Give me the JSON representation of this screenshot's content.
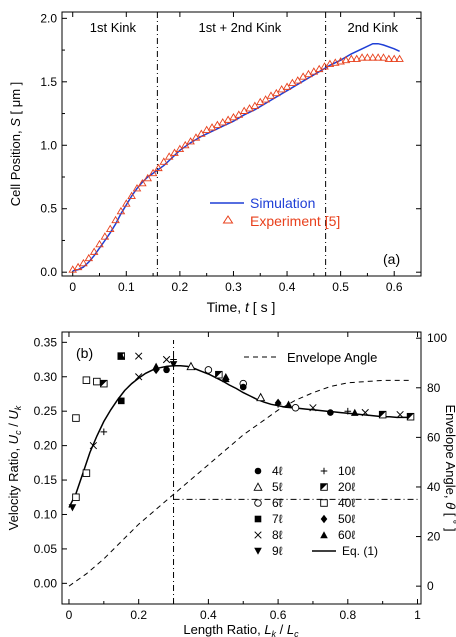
{
  "chart_data": [
    {
      "type": "line",
      "panel_label": "(a)",
      "xlabel": {
        "pre": "Time, ",
        "var": "t",
        "post": " [ s ]"
      },
      "ylabel": {
        "pre": "Cell Position, ",
        "var": "S",
        "post": " [ μm ]"
      },
      "xlim": [
        -0.02,
        0.65
      ],
      "ylim": [
        -0.03,
        2.05
      ],
      "xticks": [
        0,
        0.1,
        0.2,
        0.3,
        0.4,
        0.5,
        0.6
      ],
      "xtick_labels": [
        "0",
        "0.1",
        "0.2",
        "0.3",
        "0.4",
        "0.5",
        "0.6"
      ],
      "yticks": [
        0,
        0.5,
        1.0,
        1.5,
        2.0
      ],
      "ytick_labels": [
        "0.0",
        "0.5",
        "1.0",
        "1.5",
        "2.0"
      ],
      "vlines": [
        0.158,
        0.472
      ],
      "region_labels": [
        {
          "text": "1st Kink",
          "x": 0.075
        },
        {
          "text": "1st + 2nd Kink",
          "x": 0.312
        },
        {
          "text": "2nd Kink",
          "x": 0.56
        }
      ],
      "legend_position": "center-right",
      "series": [
        {
          "name": "Simulation",
          "style": "line",
          "color": "#1f3fd6",
          "x": [
            0,
            0.01,
            0.02,
            0.03,
            0.04,
            0.05,
            0.06,
            0.07,
            0.08,
            0.09,
            0.1,
            0.11,
            0.12,
            0.13,
            0.14,
            0.15,
            0.16,
            0.17,
            0.18,
            0.19,
            0.2,
            0.22,
            0.24,
            0.26,
            0.28,
            0.3,
            0.32,
            0.34,
            0.36,
            0.38,
            0.4,
            0.42,
            0.44,
            0.46,
            0.48,
            0.5,
            0.52,
            0.54,
            0.56,
            0.57,
            0.58,
            0.6,
            0.61
          ],
          "y": [
            0.01,
            0.02,
            0.04,
            0.08,
            0.13,
            0.19,
            0.25,
            0.31,
            0.38,
            0.46,
            0.53,
            0.6,
            0.66,
            0.71,
            0.75,
            0.78,
            0.81,
            0.84,
            0.88,
            0.92,
            0.96,
            1.02,
            1.07,
            1.11,
            1.15,
            1.19,
            1.24,
            1.28,
            1.33,
            1.38,
            1.43,
            1.48,
            1.53,
            1.58,
            1.63,
            1.67,
            1.72,
            1.76,
            1.8,
            1.8,
            1.79,
            1.76,
            1.74
          ]
        },
        {
          "name": "Experiment [5]",
          "style": "marker",
          "color": "#e8401c",
          "x": [
            0,
            0.01,
            0.02,
            0.03,
            0.04,
            0.05,
            0.06,
            0.07,
            0.08,
            0.09,
            0.1,
            0.11,
            0.12,
            0.13,
            0.14,
            0.15,
            0.16,
            0.17,
            0.18,
            0.19,
            0.2,
            0.21,
            0.22,
            0.23,
            0.24,
            0.25,
            0.26,
            0.27,
            0.28,
            0.29,
            0.3,
            0.31,
            0.32,
            0.33,
            0.34,
            0.35,
            0.36,
            0.37,
            0.38,
            0.39,
            0.4,
            0.41,
            0.42,
            0.43,
            0.44,
            0.45,
            0.46,
            0.47,
            0.48,
            0.49,
            0.5,
            0.51,
            0.52,
            0.53,
            0.54,
            0.55,
            0.56,
            0.57,
            0.58,
            0.59,
            0.6,
            0.61
          ],
          "y": [
            0.02,
            0.04,
            0.07,
            0.11,
            0.16,
            0.22,
            0.28,
            0.34,
            0.41,
            0.48,
            0.54,
            0.6,
            0.66,
            0.7,
            0.74,
            0.78,
            0.82,
            0.87,
            0.91,
            0.94,
            0.97,
            1.0,
            1.03,
            1.06,
            1.09,
            1.12,
            1.14,
            1.16,
            1.18,
            1.2,
            1.22,
            1.24,
            1.27,
            1.29,
            1.31,
            1.34,
            1.36,
            1.39,
            1.41,
            1.44,
            1.46,
            1.49,
            1.51,
            1.54,
            1.56,
            1.58,
            1.6,
            1.62,
            1.64,
            1.65,
            1.66,
            1.67,
            1.68,
            1.68,
            1.69,
            1.69,
            1.69,
            1.69,
            1.69,
            1.68,
            1.68,
            1.68
          ]
        }
      ]
    },
    {
      "type": "scatter",
      "panel_label": "(b)",
      "xlabel": {
        "pre": "Length Ratio, ",
        "var": "L",
        "sub": "k",
        "mid": " / ",
        "var2": "L",
        "sub2": "c"
      },
      "ylabel_left": {
        "pre": "Velocity Ratio, ",
        "var": "U",
        "sub": "c",
        "mid": " / ",
        "var2": "U",
        "sub2": "k"
      },
      "ylabel_right": {
        "pre": "Envelope Angle, ",
        "var": "θ",
        "post": " [ ˚ ]"
      },
      "xlim": [
        -0.02,
        1.01
      ],
      "ylim": [
        -0.03,
        0.365
      ],
      "y2lim": [
        -7.2,
        102.5
      ],
      "xticks": [
        0,
        0.2,
        0.4,
        0.6,
        0.8,
        1
      ],
      "xtick_labels": [
        "0",
        "0.2",
        "0.4",
        "0.6",
        "0.8",
        "1"
      ],
      "yticks": [
        0,
        0.05,
        0.1,
        0.15,
        0.2,
        0.25,
        0.3,
        0.35
      ],
      "ytick_labels": [
        "0.00",
        "0.05",
        "0.10",
        "0.15",
        "0.20",
        "0.25",
        "0.30",
        "0.35"
      ],
      "y2ticks": [
        0,
        20,
        40,
        60,
        80,
        100
      ],
      "y2tick_labels": [
        "0",
        "20",
        "40",
        "60",
        "80",
        "100"
      ],
      "guide_line": {
        "x": 0.3,
        "angle": 35
      },
      "envelope_legend": "Envelope Angle",
      "envelope_angle": {
        "x": [
          0,
          0.05,
          0.1,
          0.15,
          0.2,
          0.25,
          0.3,
          0.35,
          0.4,
          0.45,
          0.5,
          0.55,
          0.6,
          0.65,
          0.7,
          0.75,
          0.8,
          0.85,
          0.9,
          0.95,
          0.98
        ],
        "y": [
          0,
          5,
          11,
          18,
          25,
          31,
          37,
          43,
          49,
          55,
          61,
          66,
          71,
          75,
          78,
          80.5,
          82,
          82.5,
          83,
          83,
          83
        ]
      },
      "fit_curve": {
        "name": "Eq. (1)",
        "x": [
          0,
          0.02,
          0.04,
          0.06,
          0.08,
          0.1,
          0.12,
          0.14,
          0.16,
          0.18,
          0.2,
          0.22,
          0.24,
          0.26,
          0.28,
          0.3,
          0.32,
          0.34,
          0.36,
          0.38,
          0.4,
          0.42,
          0.44,
          0.46,
          0.48,
          0.5,
          0.52,
          0.54,
          0.56,
          0.58,
          0.6,
          0.62,
          0.64,
          0.66,
          0.68,
          0.7,
          0.72,
          0.74,
          0.76,
          0.78,
          0.8,
          0.82,
          0.84,
          0.86,
          0.88,
          0.9,
          0.92,
          0.94,
          0.96,
          0.98
        ],
        "y": [
          0.11,
          0.13,
          0.16,
          0.19,
          0.214,
          0.235,
          0.252,
          0.267,
          0.28,
          0.29,
          0.298,
          0.305,
          0.31,
          0.313,
          0.315,
          0.316,
          0.316,
          0.315,
          0.312,
          0.308,
          0.304,
          0.299,
          0.294,
          0.288,
          0.283,
          0.277,
          0.272,
          0.267,
          0.263,
          0.26,
          0.258,
          0.256,
          0.255,
          0.254,
          0.253,
          0.252,
          0.251,
          0.25,
          0.249,
          0.248,
          0.247,
          0.246,
          0.245,
          0.244,
          0.243,
          0.242,
          0.242,
          0.241,
          0.241,
          0.241
        ]
      },
      "marker_legend": [
        {
          "label": "4ℓ",
          "symbol": "circle-filled"
        },
        {
          "label": "10ℓ",
          "symbol": "plus"
        },
        {
          "label": "5ℓ",
          "symbol": "triangle-open"
        },
        {
          "label": "20ℓ",
          "symbol": "square-half"
        },
        {
          "label": "6ℓ",
          "symbol": "circle-open"
        },
        {
          "label": "40ℓ",
          "symbol": "square-open"
        },
        {
          "label": "7ℓ",
          "symbol": "square-filled"
        },
        {
          "label": "50ℓ",
          "symbol": "diamond-filled"
        },
        {
          "label": "8ℓ",
          "symbol": "cross"
        },
        {
          "label": "60ℓ",
          "symbol": "triangle-filled"
        },
        {
          "label": "9ℓ",
          "symbol": "triangle-down-filled"
        },
        {
          "label": "Eq. (1)",
          "symbol": "line"
        }
      ],
      "points": [
        {
          "x": 0.01,
          "y": 0.11,
          "symbol": "triangle-down-filled"
        },
        {
          "x": 0.02,
          "y": 0.125,
          "symbol": "square-open"
        },
        {
          "x": 0.05,
          "y": 0.16,
          "symbol": "square-open"
        },
        {
          "x": 0.07,
          "y": 0.2,
          "symbol": "cross"
        },
        {
          "x": 0.1,
          "y": 0.22,
          "symbol": "plus"
        },
        {
          "x": 0.15,
          "y": 0.265,
          "symbol": "square-filled"
        },
        {
          "x": 0.2,
          "y": 0.3,
          "symbol": "cross"
        },
        {
          "x": 0.28,
          "y": 0.31,
          "symbol": "circle-filled"
        },
        {
          "x": 0.3,
          "y": 0.318,
          "symbol": "triangle-down-filled"
        },
        {
          "x": 0.35,
          "y": 0.315,
          "symbol": "triangle-open"
        },
        {
          "x": 0.4,
          "y": 0.31,
          "symbol": "circle-open"
        },
        {
          "x": 0.43,
          "y": 0.303,
          "symbol": "square-half"
        },
        {
          "x": 0.45,
          "y": 0.297,
          "symbol": "triangle-filled"
        },
        {
          "x": 0.5,
          "y": 0.29,
          "symbol": "circle-open"
        },
        {
          "x": 0.5,
          "y": 0.285,
          "symbol": "circle-filled"
        },
        {
          "x": 0.55,
          "y": 0.27,
          "symbol": "triangle-open"
        },
        {
          "x": 0.6,
          "y": 0.26,
          "symbol": "plus"
        },
        {
          "x": 0.65,
          "y": 0.255,
          "symbol": "circle-open"
        },
        {
          "x": 0.7,
          "y": 0.255,
          "symbol": "cross"
        },
        {
          "x": 0.75,
          "y": 0.248,
          "symbol": "circle-filled"
        },
        {
          "x": 0.8,
          "y": 0.25,
          "symbol": "plus"
        },
        {
          "x": 0.85,
          "y": 0.248,
          "symbol": "cross"
        },
        {
          "x": 0.9,
          "y": 0.245,
          "symbol": "square-half"
        },
        {
          "x": 0.95,
          "y": 0.245,
          "symbol": "cross"
        },
        {
          "x": 0.98,
          "y": 0.242,
          "symbol": "square-half"
        },
        {
          "x": 0.1,
          "y": 0.29,
          "symbol": "square-half"
        },
        {
          "x": 0.15,
          "y": 0.33,
          "symbol": "square-half"
        },
        {
          "x": 0.2,
          "y": 0.33,
          "symbol": "cross"
        },
        {
          "x": 0.28,
          "y": 0.325,
          "symbol": "cross"
        },
        {
          "x": 0.3,
          "y": 0.325,
          "symbol": "plus"
        },
        {
          "x": 0.05,
          "y": 0.295,
          "symbol": "square-open"
        },
        {
          "x": 0.08,
          "y": 0.293,
          "symbol": "square-open"
        },
        {
          "x": 0.02,
          "y": 0.24,
          "symbol": "square-open"
        },
        {
          "x": 0.15,
          "y": 0.33,
          "symbol": "triangle-filled"
        },
        {
          "x": 0.25,
          "y": 0.315,
          "symbol": "triangle-filled"
        },
        {
          "x": 0.45,
          "y": 0.3,
          "symbol": "triangle-filled"
        },
        {
          "x": 0.63,
          "y": 0.26,
          "symbol": "triangle-filled"
        },
        {
          "x": 0.82,
          "y": 0.248,
          "symbol": "triangle-filled"
        },
        {
          "x": 0.25,
          "y": 0.31,
          "symbol": "diamond-filled"
        },
        {
          "x": 0.6,
          "y": 0.262,
          "symbol": "diamond-filled"
        }
      ]
    }
  ]
}
